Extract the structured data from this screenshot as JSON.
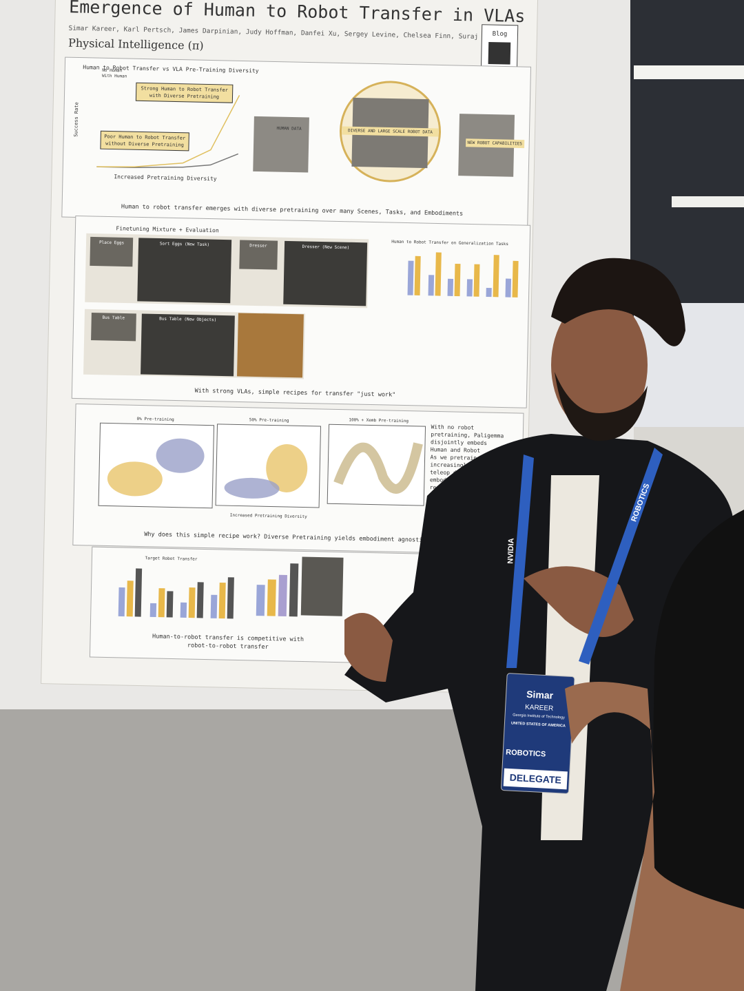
{
  "poster": {
    "title": "Emergence of Human to Robot Transfer in VLAs",
    "authors": "Simar Kareer, Karl Pertsch, James Darpinian, Judy Hoffman, Danfei Xu, Sergey Levine, Chelsea Finn, Suraj Nair",
    "affiliation": "Physical Intelligence (π)",
    "qr_label": "Blog",
    "panel1": {
      "chart_title": "Human to Robot Transfer vs VLA Pre-Training Diversity",
      "callout_strong": [
        "Strong Human to Robot Transfer",
        "with Diverse Pretraining"
      ],
      "callout_poor": [
        "Poor Human to Robot Transfer",
        "without Diverse Pretraining"
      ],
      "x_label": "Increased Pretraining Diversity",
      "y_label": "Success Rate",
      "legend": [
        "No Human",
        "With Human"
      ],
      "human_data": "HUMAN DATA",
      "robot_data": "DIVERSE AND LARGE SCALE ROBOT DATA",
      "new_capabilities": "NEW ROBOT CAPABILITIES",
      "caption": "Human to robot transfer emerges with diverse pretraining over many Scenes, Tasks, and Embodiments"
    },
    "panel2": {
      "heading": "Finetuning Mixture + Evaluation",
      "chart_title": "Human to Robot Transfer on Generalization Tasks",
      "tiles": [
        "Place Eggs",
        "Sort Eggs (New Task)",
        "Dresser",
        "Dresser (New Scene)",
        "Bus Table",
        "Bus Table (New Objects)"
      ],
      "caption": "With strong VLAs, simple recipes for transfer \"just work\""
    },
    "panel3": {
      "plot_titles": [
        "0% Pre-training",
        "50% Pre-training",
        "100% + Xemb Pre-training"
      ],
      "x_label": "Increased Pretraining Diversity",
      "bullets": [
        "With no robot pretraining, Paligemma disjointly embeds Human and Robot",
        "As we pretrain on increasingly more teleop data, embodiment agnostic represent"
      ],
      "caption": "Why does this simple recipe work? Diverse Pretraining yields embodiment agnostic rep"
    },
    "panel4": {
      "chart_title": "Target Robot Transfer",
      "caption": [
        "Human-to-robot transfer is competitive with",
        "robot-to-robot transfer"
      ]
    }
  },
  "lanyard": [
    "NVIDIA",
    "ROBOTICS"
  ],
  "badge": {
    "first_name": "Simar",
    "last_name": "KAREER",
    "institution": "Georgia Institute of Technology",
    "country": "UNITED STATES OF AMERICA",
    "event": "ROBOTICS",
    "role": "DELEGATE"
  }
}
